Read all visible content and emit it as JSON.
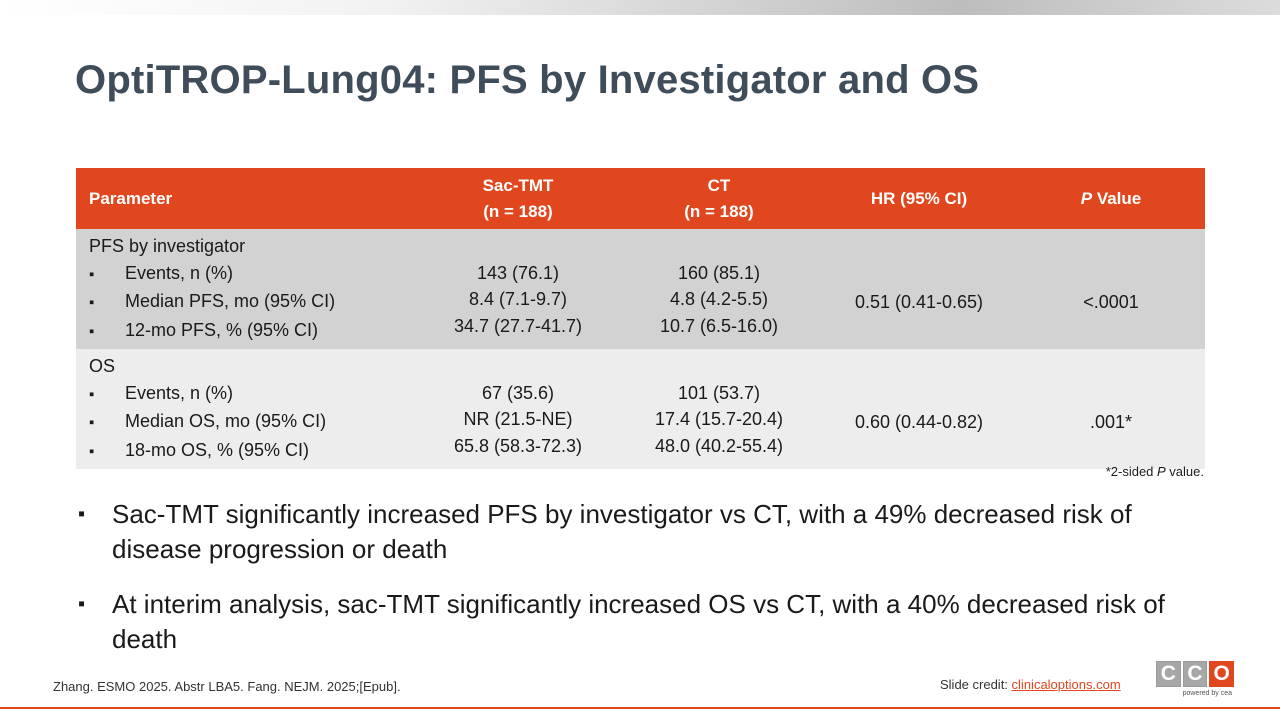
{
  "title": "OptiTROP-Lung04: PFS by Investigator and OS",
  "table": {
    "headers": {
      "parameter": "Parameter",
      "sac_tmt_line1": "Sac-TMT",
      "sac_tmt_line2": "(n = 188)",
      "ct_line1": "CT",
      "ct_line2": "(n = 188)",
      "hr": "HR (95% CI)",
      "p_italic": "P",
      "p_rest": " Value"
    },
    "rows": [
      {
        "group": "PFS by investigator",
        "items": [
          "Events, n (%)",
          "Median PFS, mo (95% CI)",
          "12-mo PFS, % (95% CI)"
        ],
        "sac_tmt": [
          "143 (76.1)",
          "8.4 (7.1-9.7)",
          "34.7 (27.7-41.7)"
        ],
        "ct": [
          "160 (85.1)",
          "4.8 (4.2-5.5)",
          "10.7 (6.5-16.0)"
        ],
        "hr": "0.51 (0.41-0.65)",
        "p": "<.0001"
      },
      {
        "group": "OS",
        "items": [
          "Events, n (%)",
          "Median OS, mo (95% CI)",
          "18-mo OS, % (95% CI)"
        ],
        "sac_tmt": [
          "67 (35.6)",
          "NR (21.5-NE)",
          "65.8 (58.3-72.3)"
        ],
        "ct": [
          "101 (53.7)",
          "17.4 (15.7-20.4)",
          "48.0 (40.2-55.4)"
        ],
        "hr": "0.60 (0.44-0.82)",
        "p": ".001*"
      }
    ]
  },
  "footnote": {
    "prefix": "*2-sided ",
    "italic": "P",
    "suffix": " value."
  },
  "bullets": [
    "Sac-TMT significantly increased PFS by investigator vs CT, with a 49% decreased risk of disease progression or death",
    "At interim analysis, sac-TMT significantly increased OS vs CT, with a 40% decreased risk of death"
  ],
  "reference": "Zhang. ESMO 2025. Abstr LBA5. Fang. NEJM. 2025;[Epub].",
  "credit": {
    "label": "Slide credit: ",
    "link": "clinicaloptions.com"
  },
  "logo": {
    "letters": [
      "C",
      "C",
      "O"
    ],
    "tagline": "powered by cea"
  },
  "colors": {
    "accent": "#e0471f",
    "title": "#3f4d5a",
    "row_pfs": "#d2d2d2",
    "row_os": "#ededed"
  }
}
